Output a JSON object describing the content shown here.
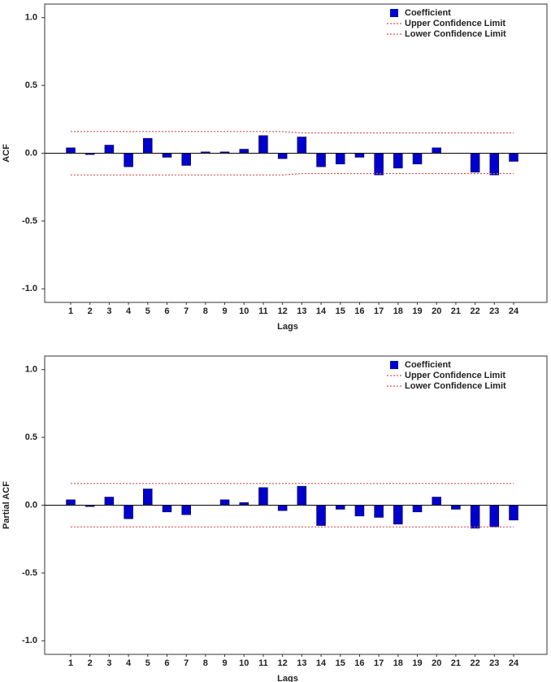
{
  "chart_data": [
    {
      "type": "bar",
      "ylabel": "ACF",
      "xlabel": "Lags",
      "categories": [
        "1",
        "2",
        "3",
        "4",
        "5",
        "6",
        "7",
        "8",
        "9",
        "10",
        "11",
        "12",
        "13",
        "14",
        "15",
        "16",
        "17",
        "18",
        "19",
        "20",
        "21",
        "22",
        "23",
        "24"
      ],
      "series": [
        {
          "name": "Coefficient",
          "type": "bar",
          "color": "#0000cc",
          "values": [
            0.04,
            -0.01,
            0.06,
            -0.1,
            0.11,
            -0.03,
            -0.09,
            0.01,
            0.01,
            0.03,
            0.13,
            -0.04,
            0.12,
            -0.1,
            -0.08,
            -0.03,
            -0.16,
            -0.11,
            -0.08,
            0.04,
            0.0,
            -0.14,
            -0.16,
            -0.06
          ]
        },
        {
          "name": "Upper Confidence Limit",
          "type": "line",
          "color": "#e05050",
          "values": [
            0.16,
            0.16,
            0.16,
            0.16,
            0.16,
            0.16,
            0.16,
            0.16,
            0.16,
            0.16,
            0.16,
            0.16,
            0.15,
            0.15,
            0.15,
            0.15,
            0.15,
            0.15,
            0.15,
            0.15,
            0.15,
            0.15,
            0.15,
            0.15
          ]
        },
        {
          "name": "Lower Confidence Limit",
          "type": "line",
          "color": "#e05050",
          "values": [
            -0.16,
            -0.16,
            -0.16,
            -0.16,
            -0.16,
            -0.16,
            -0.16,
            -0.16,
            -0.16,
            -0.16,
            -0.16,
            -0.16,
            -0.15,
            -0.15,
            -0.15,
            -0.15,
            -0.15,
            -0.15,
            -0.15,
            -0.15,
            -0.15,
            -0.15,
            -0.15,
            -0.15
          ]
        }
      ],
      "ylim": [
        -1.1,
        1.1
      ],
      "yticks": [
        {
          "value": 1.0,
          "label": "1.0"
        },
        {
          "value": 0.5,
          "label": "0.5"
        },
        {
          "value": 0.0,
          "label": "0.0"
        },
        {
          "value": -0.5,
          "label": "-0.5"
        },
        {
          "value": -1.0,
          "label": "-1.0"
        }
      ],
      "legend": "upper right"
    },
    {
      "type": "bar",
      "ylabel": "Partial ACF",
      "xlabel": "Lags",
      "categories": [
        "1",
        "2",
        "3",
        "4",
        "5",
        "6",
        "7",
        "8",
        "9",
        "10",
        "11",
        "12",
        "13",
        "14",
        "15",
        "16",
        "17",
        "18",
        "19",
        "20",
        "21",
        "22",
        "23",
        "24"
      ],
      "series": [
        {
          "name": "Coefficient",
          "type": "bar",
          "color": "#0000cc",
          "values": [
            0.04,
            -0.01,
            0.06,
            -0.1,
            0.12,
            -0.05,
            -0.07,
            0.0,
            0.04,
            0.02,
            0.13,
            -0.04,
            0.14,
            -0.15,
            -0.03,
            -0.08,
            -0.09,
            -0.14,
            -0.05,
            0.06,
            -0.03,
            -0.17,
            -0.16,
            -0.11
          ]
        },
        {
          "name": "Upper Confidence Limit",
          "type": "line",
          "color": "#e05050",
          "values": [
            0.16,
            0.16,
            0.16,
            0.16,
            0.16,
            0.16,
            0.16,
            0.16,
            0.16,
            0.16,
            0.16,
            0.16,
            0.16,
            0.16,
            0.16,
            0.16,
            0.16,
            0.16,
            0.16,
            0.16,
            0.16,
            0.16,
            0.16,
            0.16
          ]
        },
        {
          "name": "Lower Confidence Limit",
          "type": "line",
          "color": "#e05050",
          "values": [
            -0.16,
            -0.16,
            -0.16,
            -0.16,
            -0.16,
            -0.16,
            -0.16,
            -0.16,
            -0.16,
            -0.16,
            -0.16,
            -0.16,
            -0.16,
            -0.16,
            -0.16,
            -0.16,
            -0.16,
            -0.16,
            -0.16,
            -0.16,
            -0.16,
            -0.16,
            -0.16,
            -0.16
          ]
        }
      ],
      "ylim": [
        -1.1,
        1.1
      ],
      "yticks": [
        {
          "value": 1.0,
          "label": "1.0"
        },
        {
          "value": 0.5,
          "label": "0.5"
        },
        {
          "value": 0.0,
          "label": "0.0"
        },
        {
          "value": -0.5,
          "label": "-0.5"
        },
        {
          "value": -1.0,
          "label": "-1.0"
        }
      ],
      "legend": "upper right"
    }
  ]
}
